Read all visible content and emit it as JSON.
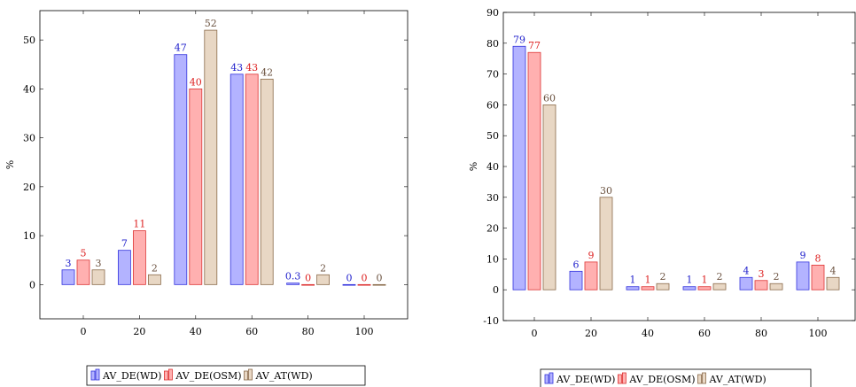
{
  "colors": {
    "AV_DE(WD)": {
      "fill": "#b3b3ff",
      "stroke": "#3333dd",
      "label": "#2222cc"
    },
    "AV_DE(OSM)": {
      "fill": "#ffb0b0",
      "stroke": "#dd3333",
      "label": "#dd2222"
    },
    "AV_AT(WD)": {
      "fill": "#e8d7c4",
      "stroke": "#8a6a4a",
      "label": "#6b5240"
    }
  },
  "chart_data": [
    {
      "type": "bar",
      "ylabel": "%",
      "ylim": [
        -7,
        56
      ],
      "yticks": [
        0,
        10,
        20,
        30,
        40,
        50
      ],
      "categories": [
        "0",
        "20",
        "40",
        "60",
        "80",
        "100"
      ],
      "series": [
        {
          "name": "AV_DE(WD)",
          "values": [
            3,
            7,
            47,
            43,
            0.3,
            0
          ],
          "labels": [
            "3",
            "7",
            "47",
            "43",
            "0.3",
            "0"
          ]
        },
        {
          "name": "AV_DE(OSM)",
          "values": [
            5,
            11,
            40,
            43,
            0,
            0
          ],
          "labels": [
            "5",
            "11",
            "40",
            "43",
            "0",
            "0"
          ]
        },
        {
          "name": "AV_AT(WD)",
          "values": [
            3,
            2,
            52,
            42,
            2,
            0
          ],
          "labels": [
            "3",
            "2",
            "52",
            "42",
            "2",
            "0"
          ]
        }
      ],
      "legend": "bottom-center"
    },
    {
      "type": "bar",
      "ylabel": "%",
      "ylim": [
        -10,
        90
      ],
      "yticks": [
        -10,
        0,
        10,
        20,
        30,
        40,
        50,
        60,
        70,
        80,
        90
      ],
      "categories": [
        "0",
        "20",
        "40",
        "60",
        "80",
        "100"
      ],
      "series": [
        {
          "name": "AV_DE(WD)",
          "values": [
            79,
            6,
            1,
            1,
            4,
            9
          ],
          "labels": [
            "79",
            "6",
            "1",
            "1",
            "4",
            "9"
          ]
        },
        {
          "name": "AV_DE(OSM)",
          "values": [
            77,
            9,
            1,
            1,
            3,
            8
          ],
          "labels": [
            "77",
            "9",
            "1",
            "1",
            "3",
            "8"
          ]
        },
        {
          "name": "AV_AT(WD)",
          "values": [
            60,
            30,
            2,
            2,
            2,
            4
          ],
          "labels": [
            "60",
            "30",
            "2",
            "2",
            "2",
            "4"
          ]
        }
      ],
      "legend": "bottom-center"
    }
  ]
}
